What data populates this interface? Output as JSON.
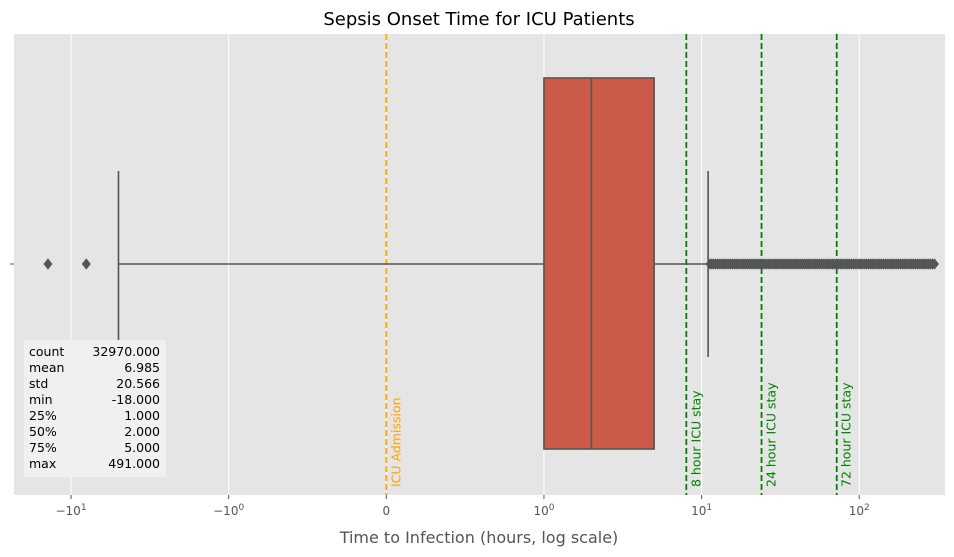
{
  "chart_data": {
    "type": "box",
    "title": "Sepsis Onset Time for ICU Patients",
    "xlabel": "Time to Infection (hours, log scale)",
    "ylabel": "",
    "x_scale": "symlog",
    "x_range": [
      -23,
      350
    ],
    "x_ticks": [
      {
        "value": -10,
        "base": "−10",
        "exp": "1"
      },
      {
        "value": -1,
        "base": "−10",
        "exp": "0"
      },
      {
        "value": 0,
        "base": "0",
        "exp": ""
      },
      {
        "value": 1,
        "base": "10",
        "exp": "0"
      },
      {
        "value": 10,
        "base": "10",
        "exp": "1"
      },
      {
        "value": 100,
        "base": "10",
        "exp": "2"
      }
    ],
    "y_tick_label": "",
    "grid": true,
    "box": {
      "q1": 1.0,
      "median": 2.0,
      "q3": 5.0,
      "whisker_low": -5.0,
      "whisker_high": 11.0,
      "color": "#cc5a48",
      "outliers_low": [
        -14,
        -8
      ],
      "outliers_high_range": [
        11.3,
        300
      ]
    },
    "reference_lines": [
      {
        "value": 0,
        "label": "ICU Admission",
        "color": "#ffa500"
      },
      {
        "value": 8,
        "label": "8 hour ICU stay",
        "color": "#008000"
      },
      {
        "value": 24,
        "label": "24 hour ICU stay",
        "color": "#008000"
      },
      {
        "value": 72,
        "label": "72 hour ICU stay",
        "color": "#008000"
      }
    ],
    "stats": [
      {
        "label": "count",
        "value": "32970.000"
      },
      {
        "label": "mean",
        "value": "6.985"
      },
      {
        "label": "std",
        "value": "20.566"
      },
      {
        "label": "min",
        "value": "-18.000"
      },
      {
        "label": "25%",
        "value": "1.000"
      },
      {
        "label": "50%",
        "value": "2.000"
      },
      {
        "label": "75%",
        "value": "5.000"
      },
      {
        "label": "max",
        "value": "491.000"
      }
    ]
  }
}
